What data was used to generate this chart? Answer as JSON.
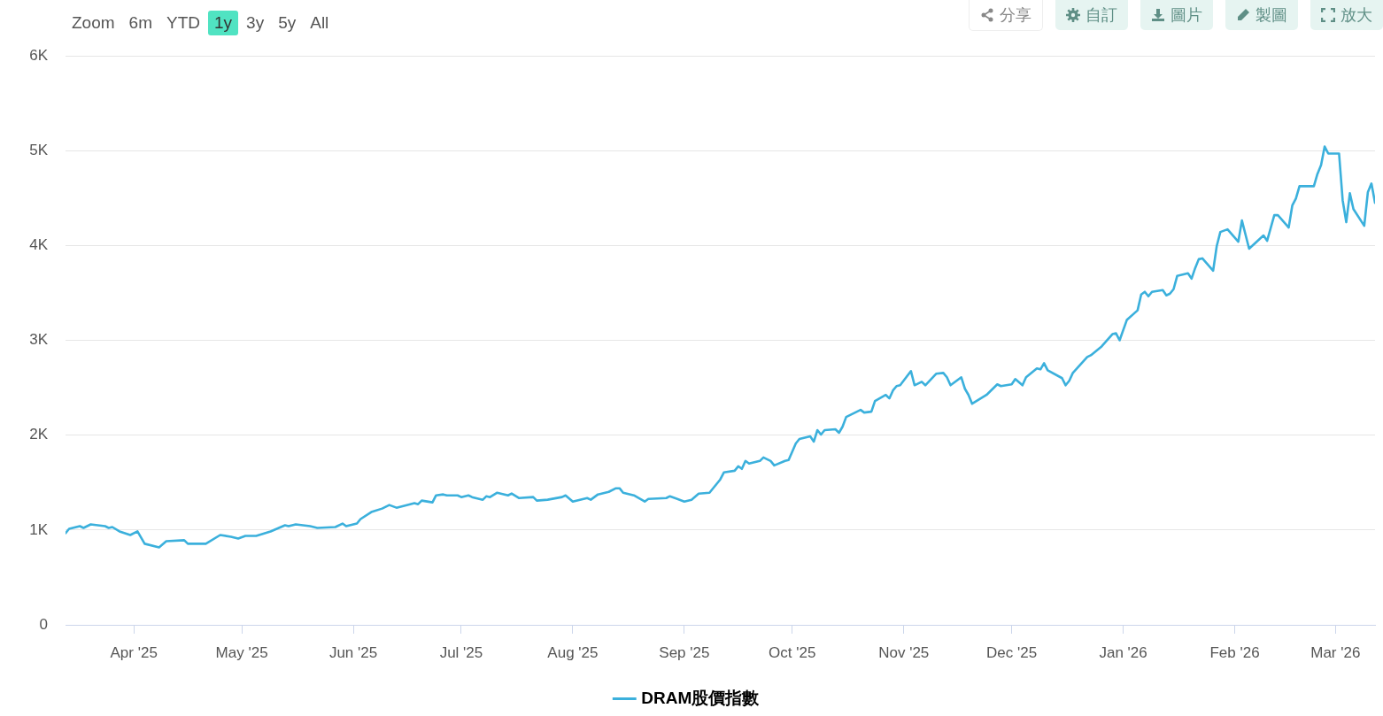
{
  "chart_data": {
    "type": "line",
    "annotations": [
      "Zoom",
      "6m",
      "YTD",
      "1y",
      "3y",
      "5y",
      "All",
      "分享",
      "自訂",
      "圖片",
      "製圖",
      "放大"
    ],
    "xlim": [
      "2025-03-13",
      "2026-03-12"
    ],
    "xticks": [
      {
        "value": "2025-04-01",
        "label": "Apr '25"
      },
      {
        "value": "2025-05-01",
        "label": "May '25"
      },
      {
        "value": "2025-06-01",
        "label": "Jun '25"
      },
      {
        "value": "2025-07-01",
        "label": "Jul '25"
      },
      {
        "value": "2025-08-01",
        "label": "Aug '25"
      },
      {
        "value": "2025-09-01",
        "label": "Sep '25"
      },
      {
        "value": "2025-10-01",
        "label": "Oct '25"
      },
      {
        "value": "2025-11-01",
        "label": "Nov '25"
      },
      {
        "value": "2025-12-01",
        "label": "Dec '25"
      },
      {
        "value": "2026-01-01",
        "label": "Jan '26"
      },
      {
        "value": "2026-02-01",
        "label": "Feb '26"
      },
      {
        "value": "2026-03-01",
        "label": "Mar '26"
      }
    ],
    "ylim": [
      0,
      6000
    ],
    "yticks": [
      0,
      {
        "value": 1000,
        "label": "1K"
      },
      {
        "value": 2000,
        "label": "2K"
      },
      {
        "value": 3000,
        "label": "3K"
      },
      {
        "value": 4000,
        "label": "4K"
      },
      {
        "value": 5000,
        "label": "5K"
      },
      {
        "value": 6000,
        "label": "6K"
      }
    ],
    "grid": "y",
    "legend": "bottom",
    "marker": "none",
    "line_style": "solid",
    "series": [
      {
        "name": "DRAM股價指數",
        "color": "#3bb0dc",
        "x": [
          "2025-03-13",
          "2025-03-14",
          "2025-03-17",
          "2025-03-18",
          "2025-03-20",
          "2025-03-24",
          "2025-03-25",
          "2025-03-26",
          "2025-03-28",
          "2025-03-31",
          "2025-04-02",
          "2025-04-04",
          "2025-04-08",
          "2025-04-10",
          "2025-04-15",
          "2025-04-16",
          "2025-04-21",
          "2025-04-25",
          "2025-04-28",
          "2025-04-30",
          "2025-05-02",
          "2025-05-05",
          "2025-05-09",
          "2025-05-13",
          "2025-05-14",
          "2025-05-16",
          "2025-05-20",
          "2025-05-22",
          "2025-05-27",
          "2025-05-29",
          "2025-05-30",
          "2025-06-02",
          "2025-06-03",
          "2025-06-06",
          "2025-06-09",
          "2025-06-11",
          "2025-06-13",
          "2025-06-18",
          "2025-06-19",
          "2025-06-20",
          "2025-06-23",
          "2025-06-24",
          "2025-06-26",
          "2025-06-27",
          "2025-06-30",
          "2025-07-01",
          "2025-07-03",
          "2025-07-04",
          "2025-07-07",
          "2025-07-08",
          "2025-07-09",
          "2025-07-11",
          "2025-07-14",
          "2025-07-15",
          "2025-07-17",
          "2025-07-21",
          "2025-07-22",
          "2025-07-25",
          "2025-07-29",
          "2025-07-30",
          "2025-08-01",
          "2025-08-05",
          "2025-08-06",
          "2025-08-08",
          "2025-08-11",
          "2025-08-13",
          "2025-08-14",
          "2025-08-15",
          "2025-08-18",
          "2025-08-21",
          "2025-08-22",
          "2025-08-27",
          "2025-08-28",
          "2025-09-01",
          "2025-09-03",
          "2025-09-05",
          "2025-09-08",
          "2025-09-11",
          "2025-09-12",
          "2025-09-15",
          "2025-09-16",
          "2025-09-17",
          "2025-09-18",
          "2025-09-19",
          "2025-09-22",
          "2025-09-23",
          "2025-09-25",
          "2025-09-26",
          "2025-09-29",
          "2025-09-30",
          "2025-10-02",
          "2025-10-03",
          "2025-10-06",
          "2025-10-07",
          "2025-10-08",
          "2025-10-09",
          "2025-10-10",
          "2025-10-13",
          "2025-10-14",
          "2025-10-15",
          "2025-10-16",
          "2025-10-20",
          "2025-10-21",
          "2025-10-23",
          "2025-10-24",
          "2025-10-27",
          "2025-10-28",
          "2025-10-29",
          "2025-10-30",
          "2025-10-31",
          "2025-11-03",
          "2025-11-04",
          "2025-11-06",
          "2025-11-07",
          "2025-11-10",
          "2025-11-12",
          "2025-11-13",
          "2025-11-14",
          "2025-11-17",
          "2025-11-18",
          "2025-11-19",
          "2025-11-20",
          "2025-11-24",
          "2025-11-27",
          "2025-11-28",
          "2025-12-01",
          "2025-12-02",
          "2025-12-04",
          "2025-12-05",
          "2025-12-08",
          "2025-12-09",
          "2025-12-10",
          "2025-12-11",
          "2025-12-15",
          "2025-12-16",
          "2025-12-17",
          "2025-12-18",
          "2025-12-22",
          "2025-12-23",
          "2025-12-26",
          "2025-12-29",
          "2025-12-30",
          "2025-12-31",
          "2026-01-02",
          "2026-01-05",
          "2026-01-06",
          "2026-01-07",
          "2026-01-08",
          "2026-01-09",
          "2026-01-12",
          "2026-01-13",
          "2026-01-14",
          "2026-01-15",
          "2026-01-16",
          "2026-01-19",
          "2026-01-20",
          "2026-01-21",
          "2026-01-22",
          "2026-01-23",
          "2026-01-26",
          "2026-01-27",
          "2026-01-28",
          "2026-01-30",
          "2026-02-02",
          "2026-02-03",
          "2026-02-05",
          "2026-02-09",
          "2026-02-10",
          "2026-02-12",
          "2026-02-13",
          "2026-02-16",
          "2026-02-17",
          "2026-02-18",
          "2026-02-19",
          "2026-02-23",
          "2026-02-24",
          "2026-02-25",
          "2026-02-26",
          "2026-02-27",
          "2026-03-02",
          "2026-03-03",
          "2026-03-04",
          "2026-03-05",
          "2026-03-06",
          "2026-03-09",
          "2026-03-10",
          "2026-03-11",
          "2026-03-12"
        ],
        "values": [
          966,
          1012,
          1040,
          1022,
          1059,
          1040,
          1022,
          1031,
          985,
          947,
          985,
          855,
          817,
          882,
          892,
          855,
          855,
          947,
          929,
          910,
          938,
          938,
          985,
          1050,
          1040,
          1059,
          1040,
          1022,
          1031,
          1068,
          1040,
          1068,
          1115,
          1189,
          1226,
          1263,
          1235,
          1282,
          1272,
          1310,
          1291,
          1365,
          1375,
          1365,
          1365,
          1347,
          1365,
          1347,
          1319,
          1356,
          1347,
          1393,
          1365,
          1384,
          1337,
          1347,
          1310,
          1319,
          1347,
          1365,
          1300,
          1337,
          1319,
          1375,
          1402,
          1440,
          1440,
          1393,
          1365,
          1300,
          1328,
          1337,
          1356,
          1300,
          1319,
          1384,
          1393,
          1533,
          1607,
          1625,
          1672,
          1644,
          1728,
          1700,
          1728,
          1765,
          1728,
          1681,
          1728,
          1737,
          1913,
          1960,
          1988,
          1932,
          2053,
          2006,
          2053,
          2062,
          2025,
          2090,
          2192,
          2266,
          2238,
          2248,
          2359,
          2424,
          2387,
          2471,
          2517,
          2526,
          2675,
          2526,
          2563,
          2526,
          2647,
          2656,
          2610,
          2526,
          2610,
          2489,
          2424,
          2331,
          2424,
          2536,
          2517,
          2536,
          2591,
          2526,
          2610,
          2703,
          2694,
          2759,
          2684,
          2601,
          2526,
          2573,
          2656,
          2824,
          2842,
          2935,
          3065,
          3074,
          3000,
          3214,
          3316,
          3483,
          3511,
          3464,
          3511,
          3529,
          3474,
          3492,
          3539,
          3678,
          3706,
          3650,
          3761,
          3855,
          3864,
          3734,
          3994,
          4142,
          4170,
          4040,
          4263,
          3966,
          4105,
          4049,
          4319,
          4319,
          4189,
          4421,
          4495,
          4625,
          4625,
          4755,
          4848,
          5043,
          4969,
          4969,
          4477,
          4245,
          4551,
          4384,
          4207,
          4560,
          4653,
          4449
        ]
      }
    ]
  }
}
